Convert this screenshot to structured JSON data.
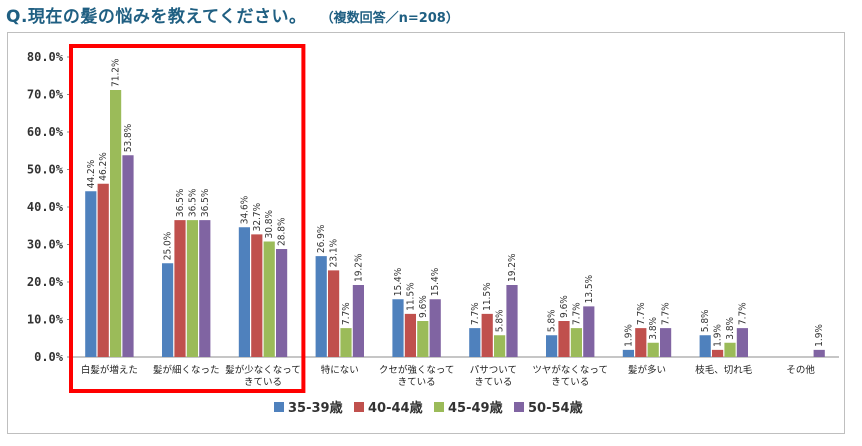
{
  "title": "Q.現在の髪の悩みを教えてください。",
  "subtitle": "（複数回答／n=208）",
  "colors": {
    "series": [
      "#4f81bd",
      "#c0504d",
      "#9bbb59",
      "#8064a2"
    ],
    "highlight": "#ff0000",
    "title": "#1f5f82"
  },
  "chart_data": {
    "type": "bar",
    "title": "Q.現在の髪の悩みを教えてください。",
    "subtitle": "（複数回答／n=208）",
    "xlabel": "",
    "ylabel": "",
    "ylim": [
      0,
      80
    ],
    "yticks": [
      "0.0%",
      "10.0%",
      "20.0%",
      "30.0%",
      "40.0%",
      "50.0%",
      "60.0%",
      "70.0%",
      "80.0%"
    ],
    "grid": false,
    "legend_position": "bottom",
    "categories": [
      [
        "白髪が増えた"
      ],
      [
        "髪が細くなった"
      ],
      [
        "髪が少なくなって",
        "きている"
      ],
      [
        "特にない"
      ],
      [
        "クセが強くなって",
        "きている"
      ],
      [
        "パサついて",
        "きている"
      ],
      [
        "ツヤがなくなって",
        "きている"
      ],
      [
        "髪が多い"
      ],
      [
        "枝毛、切れ毛"
      ],
      [
        "その他"
      ]
    ],
    "series": [
      {
        "name": "35-39歳",
        "values": [
          44.2,
          25.0,
          34.6,
          26.9,
          15.4,
          7.7,
          5.8,
          1.9,
          5.8,
          0.0
        ],
        "labels": [
          "44.2%",
          "25.0%",
          "34.6%",
          "26.9%",
          "15.4%",
          "7.7%",
          "5.8%",
          "1.9%",
          "5.8%",
          ""
        ]
      },
      {
        "name": "40-44歳",
        "values": [
          46.2,
          36.5,
          32.7,
          23.1,
          11.5,
          11.5,
          9.6,
          7.7,
          1.9,
          0.0
        ],
        "labels": [
          "46.2%",
          "36.5%",
          "32.7%",
          "23.1%",
          "11.5%",
          "11.5%",
          "9.6%",
          "7.7%",
          "1.9%",
          ""
        ]
      },
      {
        "name": "45-49歳",
        "values": [
          71.2,
          36.5,
          30.8,
          7.7,
          9.6,
          5.8,
          7.7,
          3.8,
          3.8,
          0.0
        ],
        "labels": [
          "71.2%",
          "36.5%",
          "30.8%",
          "7.7%",
          "9.6%",
          "5.8%",
          "7.7%",
          "3.8%",
          "3.8%",
          ""
        ]
      },
      {
        "name": "50-54歳",
        "values": [
          53.8,
          36.5,
          28.8,
          19.2,
          15.4,
          19.2,
          13.5,
          7.7,
          7.7,
          1.9
        ],
        "labels": [
          "53.8%",
          "36.5%",
          "28.8%",
          "19.2%",
          "15.4%",
          "19.2%",
          "13.5%",
          "7.7%",
          "7.7%",
          "1.9%"
        ]
      }
    ],
    "highlighted_categories": [
      0,
      1,
      2
    ]
  }
}
